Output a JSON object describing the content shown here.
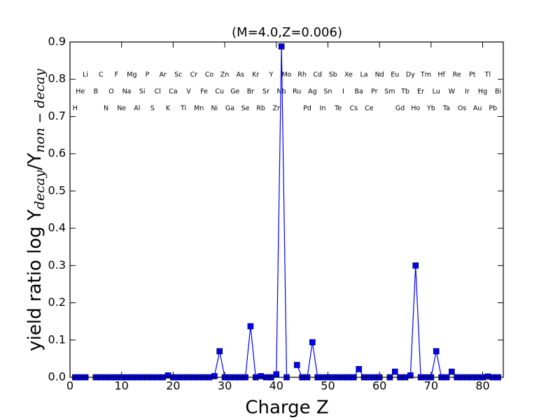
{
  "chart_data": {
    "type": "line",
    "title": "(M=4.0,Z=0.006)",
    "xlabel": "Charge Z",
    "ylabel": {
      "main": "yield ratio log Y",
      "sub1": "decay",
      "mid": "/Y",
      "sub2": "non − decay"
    },
    "xlim": [
      0,
      84
    ],
    "xticks": [
      0,
      10,
      20,
      30,
      40,
      50,
      60,
      70,
      80
    ],
    "ylim": [
      0,
      0.9
    ],
    "yticks": [
      {
        "value": 0,
        "label": "0.0"
      },
      0.1,
      0.2,
      0.3,
      0.4,
      0.5,
      0.6,
      0.7,
      0.8,
      0.9
    ],
    "color": "#0000ff",
    "x": [
      1,
      2,
      3,
      4,
      5,
      6,
      7,
      8,
      9,
      10,
      11,
      12,
      13,
      14,
      15,
      16,
      17,
      18,
      19,
      20,
      21,
      22,
      23,
      24,
      25,
      26,
      27,
      28,
      29,
      30,
      31,
      32,
      33,
      34,
      35,
      36,
      37,
      38,
      39,
      40,
      41,
      42,
      43,
      44,
      45,
      46,
      47,
      48,
      49,
      50,
      51,
      52,
      53,
      54,
      55,
      56,
      57,
      58,
      59,
      60,
      61,
      62,
      63,
      64,
      65,
      66,
      67,
      68,
      69,
      70,
      71,
      72,
      73,
      74,
      75,
      76,
      77,
      78,
      79,
      80,
      81,
      82,
      83
    ],
    "values": [
      0,
      0,
      0,
      null,
      0,
      0,
      0,
      0,
      0,
      0,
      0,
      0,
      0,
      0,
      0,
      0,
      0,
      0,
      0.005,
      0,
      0,
      0,
      0,
      0,
      0,
      0,
      0,
      0.003,
      0.07,
      0,
      0,
      0,
      0,
      0,
      0.137,
      0,
      0.003,
      0,
      0,
      0.008,
      0.888,
      0,
      null,
      0.033,
      0,
      0,
      0.094,
      0,
      0,
      0,
      0,
      0,
      0,
      0,
      0,
      0.022,
      0,
      0,
      0,
      0,
      null,
      0,
      0.015,
      0,
      0,
      0.005,
      0.3,
      0,
      0,
      0,
      0.07,
      0,
      0,
      0.015,
      0,
      0,
      0,
      0,
      0,
      0,
      0.002,
      0,
      0
    ],
    "element_labels": [
      "H",
      "He",
      "Li",
      "B",
      "C",
      "N",
      "O",
      "F",
      "Ne",
      "Na",
      "Mg",
      "Al",
      "Si",
      "P",
      "S",
      "Cl",
      "Ar",
      "K",
      "Ca",
      "Sc",
      "Ti",
      "V",
      "Cr",
      "Mn",
      "Fe",
      "Co",
      "Ni",
      "Cu",
      "Zn",
      "Ga",
      "Ge",
      "As",
      "Se",
      "Br",
      "Kr",
      "Rb",
      "Sr",
      "Y",
      "Zr",
      "Nb",
      "Mo",
      "Ru",
      "Rh",
      "Pd",
      "Ag",
      "Cd",
      "In",
      "Sn",
      "Sb",
      "Te",
      "I",
      "Xe",
      "Cs",
      "Ba",
      "La",
      "Ce",
      "Pr",
      "Nd",
      "Sm",
      "Eu",
      "Gd",
      "Tb",
      "Dy",
      "Ho",
      "Er",
      "Tm",
      "Yb",
      "Lu",
      "Hf",
      "Ta",
      "W",
      "Re",
      "Os",
      "Ir",
      "Pt",
      "Au",
      "Hg",
      "Tl",
      "Pb",
      "Bi"
    ],
    "element_z": [
      1,
      2,
      3,
      5,
      6,
      7,
      8,
      9,
      10,
      11,
      12,
      13,
      14,
      15,
      16,
      17,
      18,
      19,
      20,
      21,
      22,
      23,
      24,
      25,
      26,
      27,
      28,
      29,
      30,
      31,
      32,
      33,
      34,
      35,
      36,
      37,
      38,
      39,
      40,
      41,
      42,
      44,
      45,
      46,
      47,
      48,
      49,
      50,
      51,
      52,
      53,
      54,
      55,
      56,
      57,
      58,
      59,
      60,
      62,
      63,
      64,
      65,
      66,
      67,
      68,
      69,
      70,
      71,
      72,
      73,
      74,
      75,
      76,
      77,
      78,
      79,
      80,
      81,
      82,
      83
    ]
  }
}
